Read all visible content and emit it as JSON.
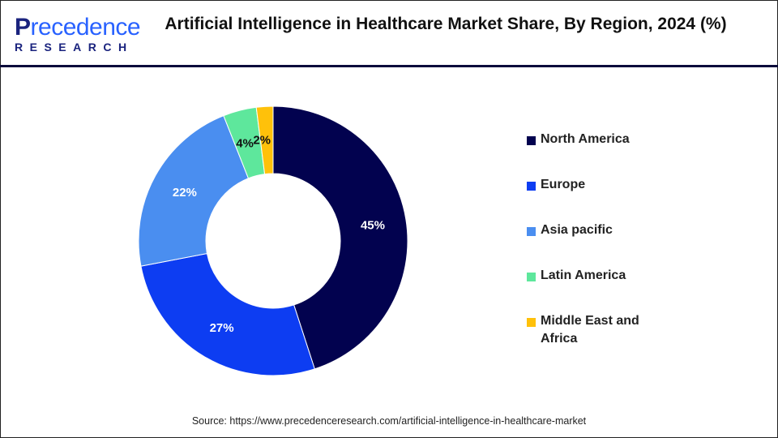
{
  "logo": {
    "brand_first": "P",
    "brand_rest": "recedence",
    "brand_sub": "RESEARCH"
  },
  "chart_data": {
    "type": "pie",
    "subtype": "donut",
    "title": "Artificial Intelligence in Healthcare Market Share, By Region, 2024 (%)",
    "categories": [
      "North America",
      "Europe",
      "Asia pacific",
      "Latin America",
      "Middle East and Africa"
    ],
    "values": [
      45,
      27,
      22,
      4,
      2
    ],
    "labels": [
      "45%",
      "27%",
      "22%",
      "4%",
      "2%"
    ],
    "colors": [
      "#02024f",
      "#0d3df2",
      "#4a8ef0",
      "#5ee79c",
      "#ffc10a"
    ],
    "label_colors": [
      "#ffffff",
      "#ffffff",
      "#ffffff",
      "#111111",
      "#111111"
    ],
    "legend_position": "right"
  },
  "source": "Source: https://www.precedenceresearch.com/artificial-intelligence-in-healthcare-market"
}
